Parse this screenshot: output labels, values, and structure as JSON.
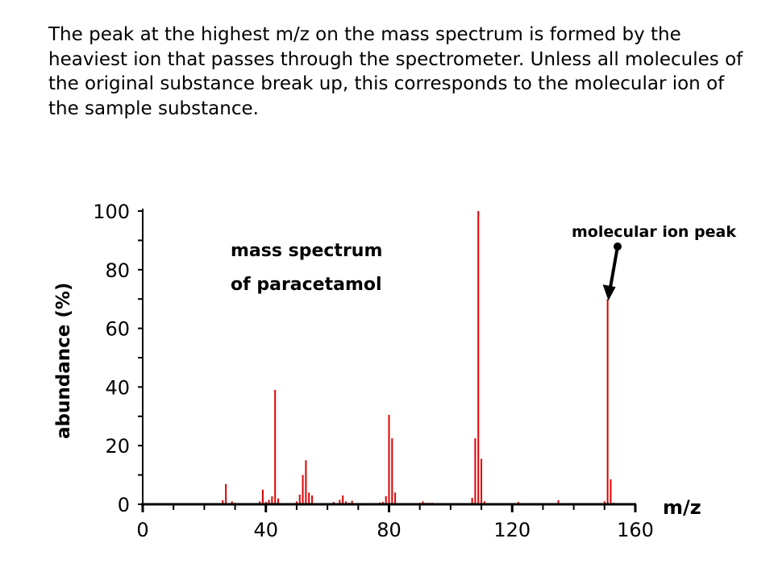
{
  "paragraph": "The peak at the highest m/z on the mass spectrum is formed by the heaviest ion that passes through the spectrometer. Unless all molecules of the original substance break up, this corresponds to the molecular ion of the sample substance.",
  "chart_data": {
    "type": "bar",
    "title": [
      "mass spectrum",
      "of paracetamol"
    ],
    "xlabel": "m/z",
    "ylabel": "abundance (%)",
    "xlim": [
      0,
      160
    ],
    "ylim": [
      0,
      100
    ],
    "xticks": [
      0,
      40,
      80,
      120,
      160
    ],
    "yticks": [
      0,
      20,
      40,
      60,
      80,
      100
    ],
    "grid": false,
    "bar_color": "#e00000",
    "annotation": {
      "text": "molecular ion peak",
      "target_mz": 151
    },
    "x": [
      26,
      27,
      29,
      30,
      37,
      38,
      39,
      40,
      41,
      42,
      43,
      44,
      50,
      51,
      52,
      53,
      54,
      55,
      56,
      58,
      61,
      62,
      64,
      65,
      66,
      67,
      68,
      69,
      75,
      77,
      78,
      79,
      80,
      81,
      82,
      83,
      90,
      91,
      92,
      93,
      94,
      106,
      107,
      108,
      109,
      110,
      111,
      120,
      122,
      135,
      136,
      150,
      151,
      152,
      153
    ],
    "values": [
      1.4,
      6.9,
      1,
      0.5,
      0.3,
      1,
      5,
      0.8,
      1.5,
      2.7,
      39,
      2,
      1,
      3.3,
      10,
      15,
      4,
      3,
      0.3,
      0.3,
      0.3,
      0.8,
      1.5,
      3,
      1,
      0.5,
      1.2,
      0.3,
      0.3,
      0.6,
      0.8,
      2.8,
      30.5,
      22.5,
      4,
      0.3,
      0.5,
      1,
      0.5,
      0.5,
      0.5,
      0.3,
      2.2,
      22.5,
      100,
      15.5,
      1,
      0.3,
      0.8,
      1.4,
      0.4,
      1,
      70,
      8.5,
      0.5
    ]
  }
}
